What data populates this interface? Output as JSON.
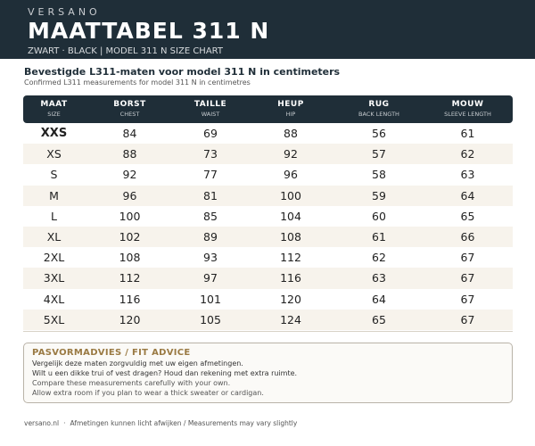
{
  "header": {
    "brand": "VERSANO",
    "title": "MAATTABEL 311 N",
    "subtitle": "ZWART · BLACK  |  MODEL 311 N SIZE CHART"
  },
  "section": {
    "heading": "Bevestigde L311-maten voor model 311 N in centimeters",
    "subheading": "Confirmed L311 measurements for model 311 N in centimetres"
  },
  "table": {
    "columns": [
      {
        "label": "MAAT",
        "sub": "SIZE"
      },
      {
        "label": "BORST",
        "sub": "CHEST"
      },
      {
        "label": "TAILLE",
        "sub": "WAIST"
      },
      {
        "label": "HEUP",
        "sub": "HIP"
      },
      {
        "label": "RUG",
        "sub": "BACK LENGTH"
      },
      {
        "label": "MOUW",
        "sub": "SLEEVE LENGTH"
      }
    ],
    "rows": [
      [
        "XXS",
        "84",
        "69",
        "88",
        "56",
        "61"
      ],
      [
        "XS",
        "88",
        "73",
        "92",
        "57",
        "62"
      ],
      [
        "S",
        "92",
        "77",
        "96",
        "58",
        "63"
      ],
      [
        "M",
        "96",
        "81",
        "100",
        "59",
        "64"
      ],
      [
        "L",
        "100",
        "85",
        "104",
        "60",
        "65"
      ],
      [
        "XL",
        "102",
        "89",
        "108",
        "61",
        "66"
      ],
      [
        "2XL",
        "108",
        "93",
        "112",
        "62",
        "67"
      ],
      [
        "3XL",
        "112",
        "97",
        "116",
        "63",
        "67"
      ],
      [
        "4XL",
        "116",
        "101",
        "120",
        "64",
        "67"
      ],
      [
        "5XL",
        "120",
        "105",
        "124",
        "65",
        "67"
      ]
    ]
  },
  "advice": {
    "title": "PASVORMADVIES / FIT ADVICE",
    "lines": [
      "Vergelijk deze maten zorgvuldig met uw eigen afmetingen.",
      "Wilt u een dikke trui of vest dragen? Houd dan rekening met extra ruimte.",
      "Compare these measurements carefully with your own.",
      "Allow extra room if you plan to wear a thick sweater or cardigan."
    ]
  },
  "footer": {
    "site": "versano.nl",
    "note": "Afmetingen kunnen licht afwijken / Measurements may vary slightly"
  },
  "colors": {
    "header_bg": "#1f2e38",
    "row_alt_bg": "#f7f3ec",
    "advice_title": "#9a7a43"
  }
}
